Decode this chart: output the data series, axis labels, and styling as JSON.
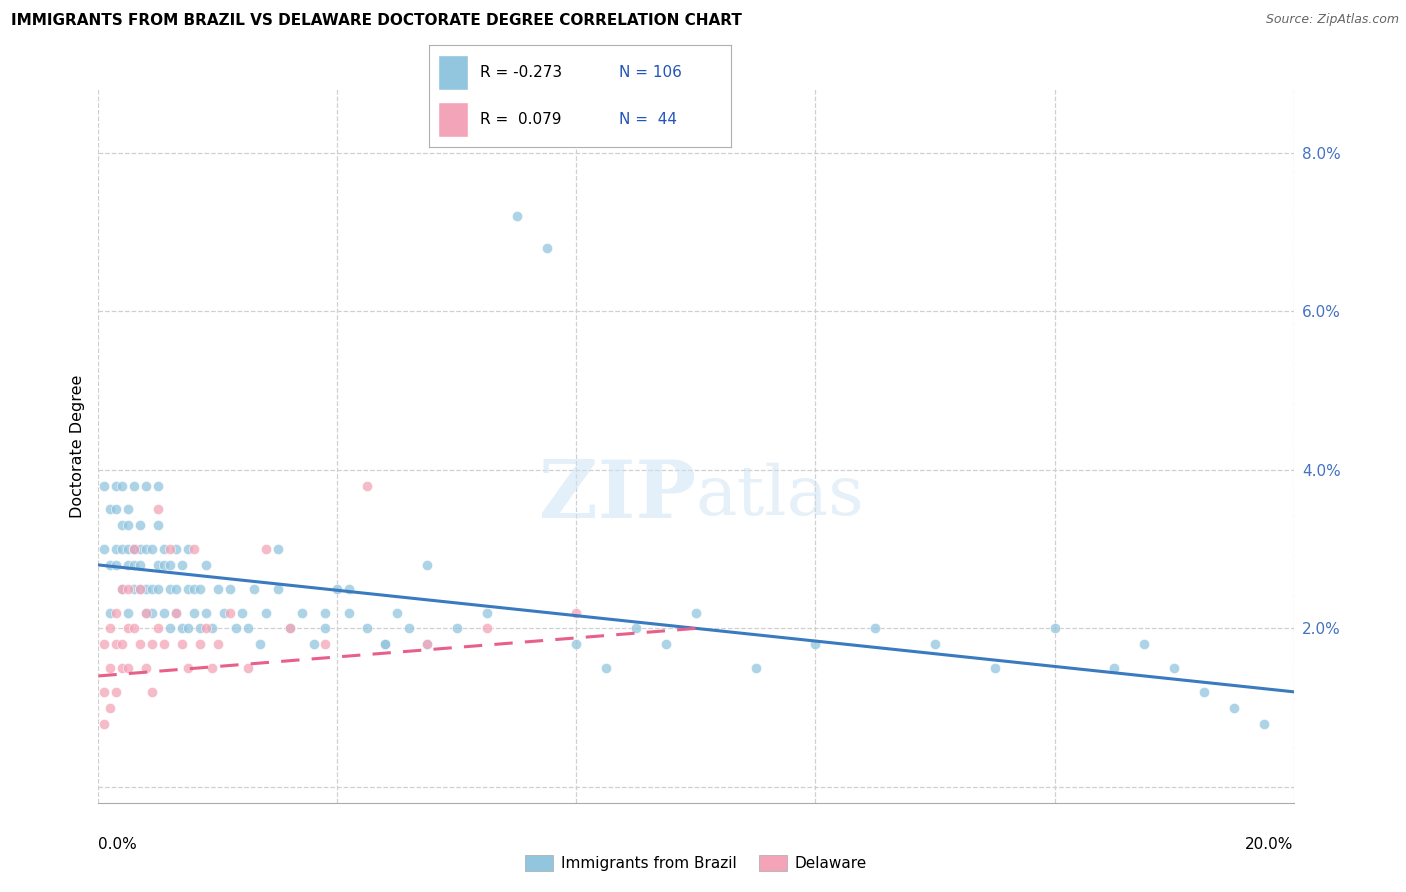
{
  "title": "IMMIGRANTS FROM BRAZIL VS DELAWARE DOCTORATE DEGREE CORRELATION CHART",
  "source": "Source: ZipAtlas.com",
  "ylabel": "Doctorate Degree",
  "xmin": 0.0,
  "xmax": 0.2,
  "ymin": -0.002,
  "ymax": 0.088,
  "color_blue": "#92c5de",
  "color_pink": "#f4a4b8",
  "color_blue_line": "#3a7abf",
  "color_pink_line": "#e8608a",
  "watermark_zip": "ZIP",
  "watermark_atlas": "atlas",
  "brazil_x": [
    0.001,
    0.001,
    0.002,
    0.002,
    0.002,
    0.003,
    0.003,
    0.003,
    0.003,
    0.004,
    0.004,
    0.004,
    0.004,
    0.005,
    0.005,
    0.005,
    0.005,
    0.005,
    0.006,
    0.006,
    0.006,
    0.006,
    0.006,
    0.007,
    0.007,
    0.007,
    0.007,
    0.008,
    0.008,
    0.008,
    0.008,
    0.009,
    0.009,
    0.009,
    0.01,
    0.01,
    0.01,
    0.01,
    0.011,
    0.011,
    0.011,
    0.012,
    0.012,
    0.012,
    0.013,
    0.013,
    0.013,
    0.014,
    0.014,
    0.015,
    0.015,
    0.015,
    0.016,
    0.016,
    0.017,
    0.017,
    0.018,
    0.018,
    0.019,
    0.02,
    0.021,
    0.022,
    0.023,
    0.024,
    0.025,
    0.026,
    0.027,
    0.028,
    0.03,
    0.032,
    0.034,
    0.036,
    0.038,
    0.04,
    0.042,
    0.045,
    0.048,
    0.05,
    0.055,
    0.06,
    0.065,
    0.07,
    0.075,
    0.08,
    0.085,
    0.09,
    0.095,
    0.1,
    0.11,
    0.12,
    0.13,
    0.14,
    0.15,
    0.16,
    0.17,
    0.175,
    0.18,
    0.185,
    0.19,
    0.195,
    0.055,
    0.03,
    0.038,
    0.042,
    0.048,
    0.052
  ],
  "brazil_y": [
    0.03,
    0.038,
    0.035,
    0.028,
    0.022,
    0.035,
    0.03,
    0.028,
    0.038,
    0.033,
    0.03,
    0.025,
    0.038,
    0.03,
    0.035,
    0.028,
    0.022,
    0.033,
    0.03,
    0.038,
    0.025,
    0.03,
    0.028,
    0.033,
    0.025,
    0.03,
    0.028,
    0.038,
    0.025,
    0.03,
    0.022,
    0.025,
    0.03,
    0.022,
    0.033,
    0.028,
    0.025,
    0.038,
    0.028,
    0.022,
    0.03,
    0.025,
    0.02,
    0.028,
    0.022,
    0.03,
    0.025,
    0.02,
    0.028,
    0.025,
    0.02,
    0.03,
    0.022,
    0.025,
    0.02,
    0.025,
    0.022,
    0.028,
    0.02,
    0.025,
    0.022,
    0.025,
    0.02,
    0.022,
    0.02,
    0.025,
    0.018,
    0.022,
    0.025,
    0.02,
    0.022,
    0.018,
    0.02,
    0.025,
    0.022,
    0.02,
    0.018,
    0.022,
    0.018,
    0.02,
    0.022,
    0.072,
    0.068,
    0.018,
    0.015,
    0.02,
    0.018,
    0.022,
    0.015,
    0.018,
    0.02,
    0.018,
    0.015,
    0.02,
    0.015,
    0.018,
    0.015,
    0.012,
    0.01,
    0.008,
    0.028,
    0.03,
    0.022,
    0.025,
    0.018,
    0.02
  ],
  "delaware_x": [
    0.001,
    0.001,
    0.001,
    0.002,
    0.002,
    0.002,
    0.003,
    0.003,
    0.003,
    0.004,
    0.004,
    0.004,
    0.005,
    0.005,
    0.005,
    0.006,
    0.006,
    0.007,
    0.007,
    0.008,
    0.008,
    0.009,
    0.009,
    0.01,
    0.01,
    0.011,
    0.012,
    0.013,
    0.014,
    0.015,
    0.016,
    0.017,
    0.018,
    0.019,
    0.02,
    0.022,
    0.025,
    0.028,
    0.032,
    0.038,
    0.045,
    0.055,
    0.065,
    0.08
  ],
  "delaware_y": [
    0.012,
    0.018,
    0.008,
    0.02,
    0.015,
    0.01,
    0.022,
    0.018,
    0.012,
    0.025,
    0.015,
    0.018,
    0.02,
    0.025,
    0.015,
    0.03,
    0.02,
    0.025,
    0.018,
    0.022,
    0.015,
    0.018,
    0.012,
    0.035,
    0.02,
    0.018,
    0.03,
    0.022,
    0.018,
    0.015,
    0.03,
    0.018,
    0.02,
    0.015,
    0.018,
    0.022,
    0.015,
    0.03,
    0.02,
    0.018,
    0.038,
    0.018,
    0.02,
    0.022
  ],
  "brazil_line_x": [
    0.0,
    0.2
  ],
  "brazil_line_y": [
    0.028,
    0.012
  ],
  "delaware_line_x": [
    0.0,
    0.1
  ],
  "delaware_line_y": [
    0.014,
    0.02
  ]
}
